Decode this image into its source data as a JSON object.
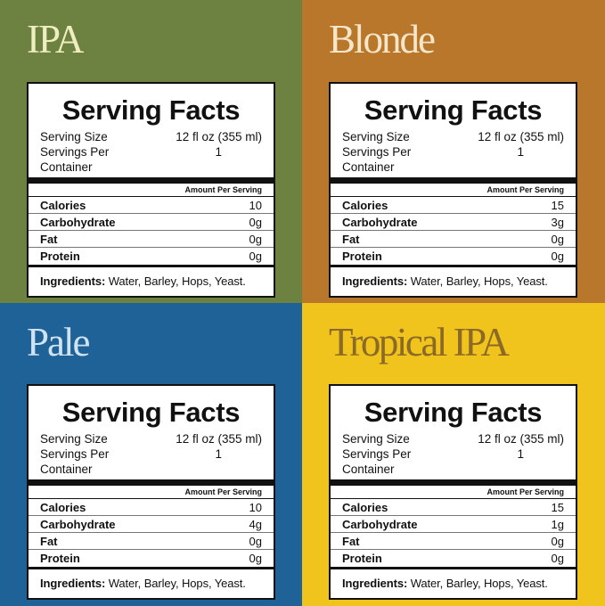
{
  "common": {
    "title": "Serving Facts",
    "serving_size_label": "Serving Size",
    "serving_size_value": "12 fl oz (355 ml)",
    "servings_per_container_label": "Servings Per Container",
    "servings_per_container_value": "1",
    "amount_per_serving": "Amount Per Serving",
    "calories_label": "Calories",
    "carbohydrate_label": "Carbohydrate",
    "fat_label": "Fat",
    "protein_label": "Protein",
    "ingredients_label": "Ingredients:",
    "ingredients_value": " Water, Barley, Hops, Yeast."
  },
  "beers": [
    {
      "name": "IPA",
      "bg": "#6d8240",
      "name_color": "#efeec0",
      "calories": "10",
      "carbohydrate": "0g",
      "fat": "0g",
      "protein": "0g"
    },
    {
      "name": "Blonde",
      "bg": "#b8772b",
      "name_color": "#f6e6c9",
      "calories": "15",
      "carbohydrate": "3g",
      "fat": "0g",
      "protein": "0g"
    },
    {
      "name": "Pale",
      "bg": "#1f6298",
      "name_color": "#cfe3f2",
      "calories": "10",
      "carbohydrate": "4g",
      "fat": "0g",
      "protein": "0g"
    },
    {
      "name": "Tropical IPA",
      "bg": "#f1c31d",
      "name_color": "#8a6a26",
      "calories": "15",
      "carbohydrate": "1g",
      "fat": "0g",
      "protein": "0g"
    }
  ]
}
